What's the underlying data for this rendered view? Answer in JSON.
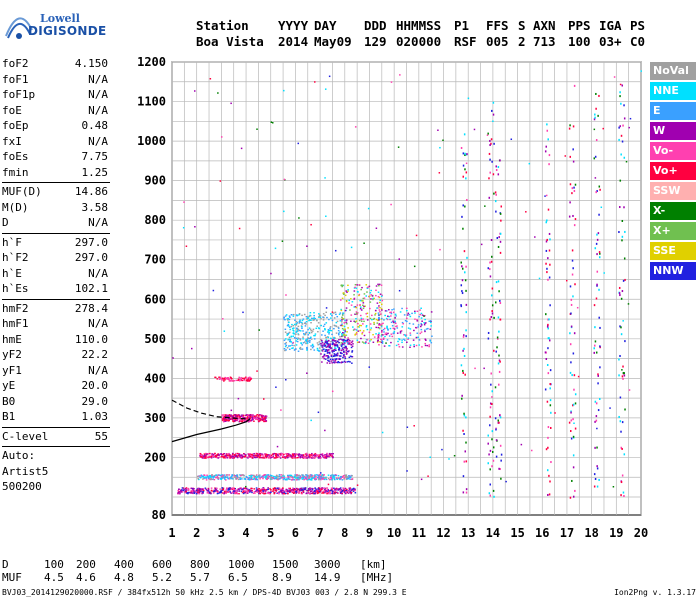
{
  "logo": {
    "line1": "Lowell",
    "line2": "DIGISONDE"
  },
  "header": {
    "labels": [
      "Station",
      "YYYY",
      "DAY",
      "DDD",
      "HHMMSS",
      "P1",
      "FFS",
      "S",
      "AXN",
      "PPS",
      "IGA",
      "PS"
    ],
    "values": [
      "Boa Vista",
      "2014",
      "May09",
      "129",
      "020000",
      "RSF",
      "005",
      "2",
      "713",
      "100",
      "03+",
      "C0"
    ]
  },
  "params": {
    "group1": [
      {
        "k": "foF2",
        "v": "4.150"
      },
      {
        "k": "foF1",
        "v": "N/A"
      },
      {
        "k": "foF1p",
        "v": "N/A"
      },
      {
        "k": "foE",
        "v": "N/A"
      },
      {
        "k": "foEp",
        "v": "0.48"
      },
      {
        "k": "fxI",
        "v": "N/A"
      },
      {
        "k": "foEs",
        "v": "7.75"
      },
      {
        "k": "fmin",
        "v": "1.25"
      }
    ],
    "group2": [
      {
        "k": "MUF(D)",
        "v": "14.86"
      },
      {
        "k": "M(D)",
        "v": "3.58"
      },
      {
        "k": "D",
        "v": "N/A"
      }
    ],
    "group3": [
      {
        "k": "h`F",
        "v": "297.0"
      },
      {
        "k": "h`F2",
        "v": "297.0"
      },
      {
        "k": "h`E",
        "v": "N/A"
      },
      {
        "k": "h`Es",
        "v": "102.1"
      }
    ],
    "group4": [
      {
        "k": "hmF2",
        "v": "278.4"
      },
      {
        "k": "hmF1",
        "v": "N/A"
      },
      {
        "k": "hmE",
        "v": "110.0"
      },
      {
        "k": "yF2",
        "v": "22.2"
      },
      {
        "k": "yF1",
        "v": "N/A"
      },
      {
        "k": "yE",
        "v": "20.0"
      },
      {
        "k": "B0",
        "v": "29.0"
      },
      {
        "k": "B1",
        "v": "1.03"
      }
    ],
    "group5": [
      {
        "k": "C-level",
        "v": "55"
      }
    ],
    "auto": [
      "Auto:",
      "Artist5",
      "500200"
    ]
  },
  "legend": [
    {
      "label": "NoVal",
      "color": "#a0a0a0"
    },
    {
      "label": "NNE",
      "color": "#00e0ff"
    },
    {
      "label": "E",
      "color": "#3aa0ff"
    },
    {
      "label": "W",
      "color": "#a000b0"
    },
    {
      "label": "Vo-",
      "color": "#ff40b0"
    },
    {
      "label": "Vo+",
      "color": "#ff0040"
    },
    {
      "label": "SSW",
      "color": "#ffb0b0"
    },
    {
      "label": "X-",
      "color": "#008000"
    },
    {
      "label": "X+",
      "color": "#70c050"
    },
    {
      "label": "SSE",
      "color": "#e0d000"
    },
    {
      "label": "NNW",
      "color": "#2020e0"
    }
  ],
  "bottom": {
    "dist_label": "D",
    "dist_values": [
      "100",
      "200",
      "400",
      "600",
      "800",
      "1000",
      "1500",
      "3000"
    ],
    "dist_unit": "[km]",
    "muf_label": "MUF",
    "muf_values": [
      "4.5",
      "4.6",
      "4.8",
      "5.2",
      "5.7",
      "6.5",
      "8.9",
      "14.9"
    ],
    "muf_unit": "[MHz]",
    "footer_left": "BVJ03_2014129020000.RSF / 384fx512h 50 kHz 2.5 km / DPS-4D BVJ03 003 / 2.8 N 299.3 E",
    "footer_right": "Ion2Png v. 1.3.17"
  },
  "chart_data": {
    "type": "scatter",
    "title": "",
    "xlabel": "",
    "ylabel": "",
    "xlim": [
      1,
      20
    ],
    "ylim": [
      80,
      1200
    ],
    "xticks": [
      1,
      2,
      3,
      4,
      5,
      6,
      7,
      8,
      9,
      10,
      11,
      12,
      13,
      14,
      15,
      16,
      17,
      18,
      19,
      20
    ],
    "yticks": [
      80,
      100,
      200,
      300,
      400,
      500,
      600,
      700,
      800,
      900,
      1000,
      1100,
      1200
    ],
    "y_tick_labels": [
      "80",
      "",
      "200",
      "300",
      "400",
      "500",
      "600",
      "700",
      "800",
      "900",
      "1000",
      "1100",
      "1200"
    ],
    "grid": true,
    "profile_curve": [
      [
        1.0,
        240
      ],
      [
        2.0,
        258
      ],
      [
        3.0,
        272
      ],
      [
        3.6,
        282
      ],
      [
        4.0,
        290
      ],
      [
        4.15,
        297
      ]
    ],
    "extrapolated_curve": [
      [
        1.0,
        345
      ],
      [
        1.6,
        325
      ],
      [
        2.2,
        312
      ],
      [
        2.8,
        303
      ],
      [
        3.6,
        299
      ],
      [
        4.15,
        297
      ]
    ],
    "clusters": [
      {
        "name": "Es trace 115km",
        "x": [
          1.2,
          8.4
        ],
        "y": [
          110,
          125
        ],
        "colors": [
          "#ff40b0",
          "#a000b0",
          "#ff0040",
          "#2020e0"
        ],
        "n": 700
      },
      {
        "name": "Es trace 150km",
        "x": [
          2.0,
          8.3
        ],
        "y": [
          145,
          158
        ],
        "colors": [
          "#ff40b0",
          "#00e0ff",
          "#a0a0a0",
          "#3aa0ff"
        ],
        "n": 500
      },
      {
        "name": "Es second hop",
        "x": [
          2.1,
          7.5
        ],
        "y": [
          200,
          212
        ],
        "colors": [
          "#ff40b0",
          "#ff0040",
          "#a000b0"
        ],
        "n": 500
      },
      {
        "name": "F trace",
        "x": [
          3.0,
          4.8
        ],
        "y": [
          292,
          310
        ],
        "colors": [
          "#ff0040",
          "#ff40b0",
          "#a000b0"
        ],
        "n": 300
      },
      {
        "name": "F second hop",
        "x": [
          2.7,
          4.2
        ],
        "y": [
          395,
          405
        ],
        "colors": [
          "#ff0040",
          "#ff40b0"
        ],
        "n": 80
      },
      {
        "name": "Spread F NNE",
        "x": [
          5.5,
          8.0
        ],
        "y": [
          470,
          570
        ],
        "colors": [
          "#00e0ff",
          "#3aa0ff",
          "#a0a0a0"
        ],
        "n": 350
      },
      {
        "name": "Spread F NNW",
        "x": [
          7.0,
          8.3
        ],
        "y": [
          440,
          500
        ],
        "colors": [
          "#2020e0",
          "#a000b0"
        ],
        "n": 200
      },
      {
        "name": "Spread F multi",
        "x": [
          7.8,
          9.5
        ],
        "y": [
          490,
          640
        ],
        "colors": [
          "#e0d000",
          "#70c050",
          "#ff40b0",
          "#a000b0",
          "#00e0ff"
        ],
        "n": 250
      },
      {
        "name": "Spread F W",
        "x": [
          9.3,
          11.5
        ],
        "y": [
          480,
          580
        ],
        "colors": [
          "#a000b0",
          "#00e0ff",
          "#ff40b0",
          "#3aa0ff"
        ],
        "n": 200
      }
    ],
    "vertical_traces": [
      {
        "x": 12.8,
        "y": [
          100,
          1050
        ]
      },
      {
        "x": 13.9,
        "y": [
          100,
          1100
        ]
      },
      {
        "x": 14.2,
        "y": [
          100,
          1000
        ]
      },
      {
        "x": 16.2,
        "y": [
          100,
          1050
        ]
      },
      {
        "x": 17.2,
        "y": [
          100,
          1150
        ]
      },
      {
        "x": 18.2,
        "y": [
          100,
          1150
        ]
      },
      {
        "x": 19.2,
        "y": [
          100,
          1150
        ]
      }
    ]
  }
}
